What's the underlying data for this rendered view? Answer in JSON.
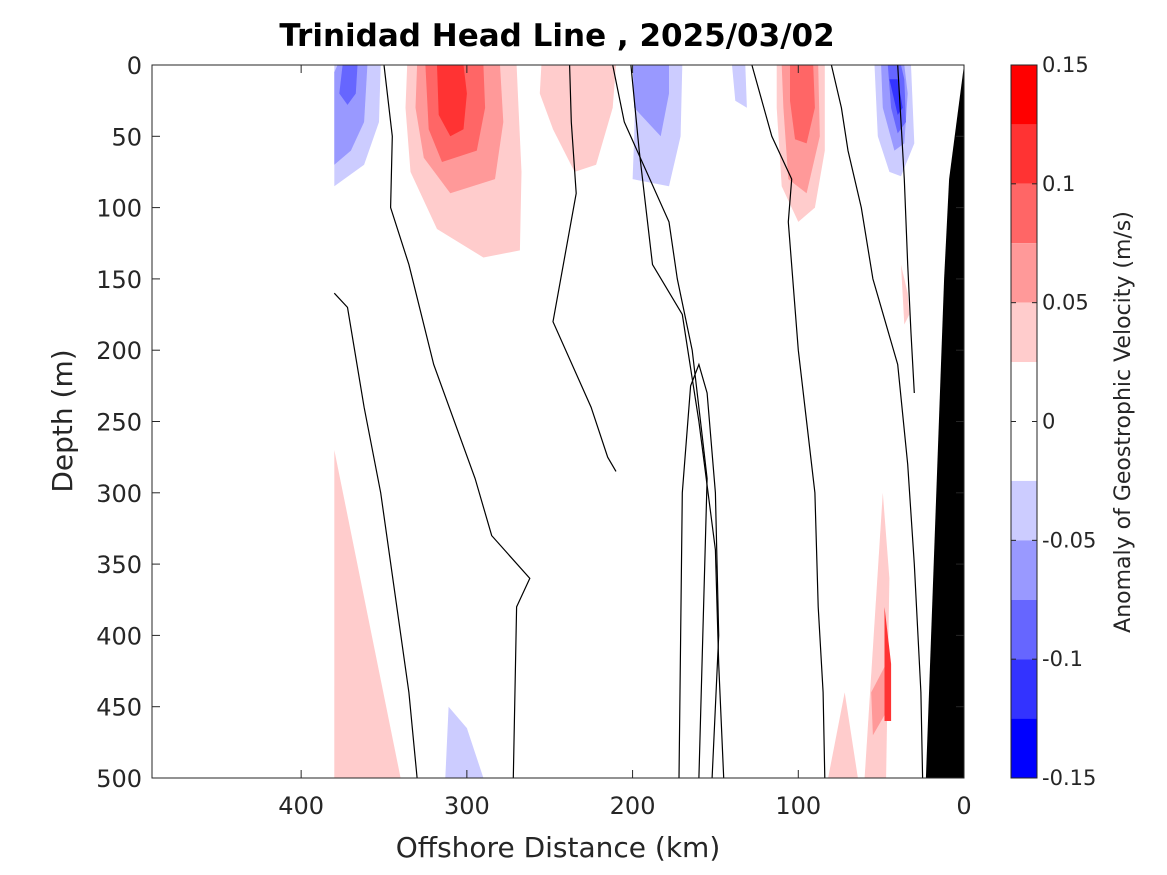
{
  "chart_data": {
    "type": "heatmap",
    "title": "Trinidad Head Line , 2025/03/02",
    "xlabel": "Offshore Distance (km)",
    "ylabel": "Depth (m)",
    "xlim": [
      490,
      0
    ],
    "ylim": [
      0,
      500
    ],
    "x_reversed": true,
    "y_reversed": true,
    "xticks": [
      400,
      300,
      200,
      100,
      0
    ],
    "yticks": [
      0,
      50,
      100,
      150,
      200,
      250,
      300,
      350,
      400,
      450,
      500
    ],
    "colorbar": {
      "label": "Anomaly of Geostrophic Velocity (m/s)",
      "range": [
        -0.15,
        0.15
      ],
      "ticks": [
        0.15,
        0.1,
        0.05,
        0,
        -0.05,
        -0.1,
        -0.15
      ],
      "tick_labels": [
        "0.15",
        "0.1",
        "0.05",
        "0",
        "-0.05",
        "-0.1",
        "-0.15"
      ],
      "levels": [
        {
          "from": 0.125,
          "to": 0.15,
          "color": "#ff0000"
        },
        {
          "from": 0.1,
          "to": 0.125,
          "color": "#ff3333"
        },
        {
          "from": 0.075,
          "to": 0.1,
          "color": "#ff6666"
        },
        {
          "from": 0.05,
          "to": 0.075,
          "color": "#ff9999"
        },
        {
          "from": 0.025,
          "to": 0.05,
          "color": "#ffcccc"
        },
        {
          "from": 0.0,
          "to": 0.025,
          "color": "#ffffff"
        },
        {
          "from": -0.025,
          "to": 0.0,
          "color": "#ffffff"
        },
        {
          "from": -0.05,
          "to": -0.025,
          "color": "#ccccff"
        },
        {
          "from": -0.075,
          "to": -0.05,
          "color": "#9999ff"
        },
        {
          "from": -0.1,
          "to": -0.075,
          "color": "#6666ff"
        },
        {
          "from": -0.125,
          "to": -0.1,
          "color": "#3333ff"
        },
        {
          "from": -0.15,
          "to": -0.125,
          "color": "#0000ff"
        }
      ]
    },
    "bathymetry_color": "#000000",
    "bathymetry": [
      [
        0,
        0
      ],
      [
        9,
        80
      ],
      [
        12,
        150
      ],
      [
        23,
        500
      ],
      [
        0,
        500
      ]
    ],
    "filled_regions": [
      {
        "level": -0.025,
        "points": [
          [
            380,
            0
          ],
          [
            338,
            0
          ],
          [
            339,
            30
          ],
          [
            345,
            70
          ],
          [
            358,
            95
          ],
          [
            380,
            115
          ]
        ]
      },
      {
        "level": -0.05,
        "points": [
          [
            380,
            0
          ],
          [
            352,
            0
          ],
          [
            353,
            40
          ],
          [
            362,
            70
          ],
          [
            380,
            85
          ]
        ]
      },
      {
        "level": -0.075,
        "points": [
          [
            378,
            0
          ],
          [
            360,
            0
          ],
          [
            362,
            40
          ],
          [
            370,
            60
          ],
          [
            380,
            70
          ],
          [
            380,
            5
          ]
        ]
      },
      {
        "level": -0.1,
        "points": [
          [
            375,
            0
          ],
          [
            366,
            0
          ],
          [
            367,
            20
          ],
          [
            372,
            28
          ],
          [
            377,
            20
          ]
        ]
      },
      {
        "level": 0.025,
        "points": [
          [
            336,
            0
          ],
          [
            270,
            0
          ],
          [
            269,
            25
          ],
          [
            267,
            75
          ],
          [
            268,
            130
          ],
          [
            290,
            135
          ],
          [
            318,
            115
          ],
          [
            334,
            75
          ],
          [
            337,
            30
          ]
        ]
      },
      {
        "level": 0.05,
        "points": [
          [
            330,
            0
          ],
          [
            280,
            0
          ],
          [
            278,
            40
          ],
          [
            283,
            80
          ],
          [
            310,
            90
          ],
          [
            326,
            65
          ],
          [
            331,
            30
          ]
        ]
      },
      {
        "level": 0.075,
        "points": [
          [
            325,
            0
          ],
          [
            290,
            0
          ],
          [
            289,
            30
          ],
          [
            294,
            60
          ],
          [
            315,
            68
          ],
          [
            323,
            45
          ]
        ]
      },
      {
        "level": 0.1,
        "points": [
          [
            318,
            0
          ],
          [
            302,
            0
          ],
          [
            300,
            20
          ],
          [
            302,
            45
          ],
          [
            310,
            50
          ],
          [
            317,
            35
          ]
        ]
      },
      {
        "level": 0.025,
        "points": [
          [
            255,
            0
          ],
          [
            210,
            0
          ],
          [
            212,
            30
          ],
          [
            222,
            70
          ],
          [
            235,
            75
          ],
          [
            248,
            45
          ],
          [
            256,
            20
          ]
        ]
      },
      {
        "level": -0.025,
        "points": [
          [
            232,
            0
          ],
          [
            196,
            0
          ],
          [
            194,
            40
          ],
          [
            190,
            90
          ],
          [
            176,
            110
          ],
          [
            165,
            80
          ],
          [
            162,
            30
          ],
          [
            164,
            0
          ]
        ]
      },
      {
        "level": -0.05,
        "points": [
          [
            225,
            0
          ],
          [
            198,
            0
          ],
          [
            199,
            50
          ],
          [
            200,
            80
          ],
          [
            178,
            85
          ],
          [
            171,
            50
          ],
          [
            170,
            0
          ]
        ]
      },
      {
        "level": -0.075,
        "points": [
          [
            218,
            0
          ],
          [
            200,
            0
          ],
          [
            199,
            30
          ],
          [
            183,
            50
          ],
          [
            178,
            20
          ],
          [
            178,
            0
          ]
        ]
      },
      {
        "level": -0.025,
        "points": [
          [
            145,
            0
          ],
          [
            128,
            0
          ],
          [
            126,
            40
          ],
          [
            120,
            70
          ],
          [
            135,
            70
          ],
          [
            142,
            40
          ]
        ]
      },
      {
        "level": -0.05,
        "points": [
          [
            140,
            0
          ],
          [
            132,
            0
          ],
          [
            131,
            30
          ],
          [
            138,
            25
          ]
        ]
      },
      {
        "level": 0.025,
        "points": [
          [
            113,
            0
          ],
          [
            84,
            0
          ],
          [
            84,
            60
          ],
          [
            90,
            100
          ],
          [
            100,
            110
          ],
          [
            110,
            85
          ],
          [
            113,
            30
          ]
        ]
      },
      {
        "level": 0.05,
        "points": [
          [
            110,
            0
          ],
          [
            88,
            0
          ],
          [
            87,
            50
          ],
          [
            95,
            90
          ],
          [
            106,
            80
          ],
          [
            109,
            30
          ]
        ]
      },
      {
        "level": 0.075,
        "points": [
          [
            105,
            0
          ],
          [
            91,
            0
          ],
          [
            90,
            30
          ],
          [
            95,
            55
          ],
          [
            102,
            52
          ],
          [
            105,
            25
          ]
        ]
      },
      {
        "level": -0.025,
        "points": [
          [
            70,
            0
          ],
          [
            58,
            0
          ],
          [
            55,
            50
          ],
          [
            48,
            85
          ],
          [
            35,
            90
          ],
          [
            26,
            70
          ],
          [
            25,
            25
          ],
          [
            28,
            0
          ]
        ]
      },
      {
        "level": -0.05,
        "points": [
          [
            64,
            0
          ],
          [
            54,
            0
          ],
          [
            52,
            50
          ],
          [
            45,
            75
          ],
          [
            38,
            78
          ],
          [
            30,
            55
          ],
          [
            32,
            0
          ]
        ]
      },
      {
        "level": -0.075,
        "points": [
          [
            60,
            0
          ],
          [
            50,
            0
          ],
          [
            49,
            30
          ],
          [
            42,
            60
          ],
          [
            36,
            55
          ],
          [
            34,
            20
          ],
          [
            36,
            0
          ]
        ]
      },
      {
        "level": -0.1,
        "points": [
          [
            57,
            0
          ],
          [
            46,
            0
          ],
          [
            44,
            30
          ],
          [
            40,
            48
          ],
          [
            35,
            40
          ],
          [
            36,
            10
          ],
          [
            38,
            0
          ]
        ]
      },
      {
        "level": -0.125,
        "points": [
          [
            45,
            10
          ],
          [
            40,
            10
          ],
          [
            37,
            30
          ],
          [
            40,
            35
          ]
        ]
      },
      {
        "level": -0.025,
        "points": [
          [
            82,
            100
          ],
          [
            75,
            110
          ],
          [
            75,
            150
          ],
          [
            78,
            190
          ],
          [
            84,
            175
          ],
          [
            84,
            130
          ]
        ]
      },
      {
        "level": 0.025,
        "points": [
          [
            38,
            140
          ],
          [
            34,
            160
          ],
          [
            33,
            175
          ],
          [
            36,
            182
          ]
        ]
      },
      {
        "level": 0.025,
        "points": [
          [
            380,
            270
          ],
          [
            340,
            500
          ],
          [
            380,
            500
          ]
        ]
      },
      {
        "level": -0.025,
        "points": [
          [
            322,
            500
          ],
          [
            323,
            330
          ],
          [
            315,
            290
          ],
          [
            299,
            320
          ],
          [
            286,
            375
          ],
          [
            273,
            405
          ],
          [
            267,
            500
          ]
        ]
      },
      {
        "level": -0.05,
        "points": [
          [
            313,
            500
          ],
          [
            311,
            450
          ],
          [
            300,
            465
          ],
          [
            290,
            500
          ]
        ]
      },
      {
        "level": -0.025,
        "points": [
          [
            114,
            500
          ],
          [
            107,
            340
          ],
          [
            98,
            400
          ],
          [
            98,
            500
          ]
        ]
      },
      {
        "level": 0.025,
        "points": [
          [
            82,
            500
          ],
          [
            72,
            440
          ],
          [
            64,
            500
          ]
        ]
      },
      {
        "level": 0.025,
        "points": [
          [
            60,
            500
          ],
          [
            49,
            300
          ],
          [
            45,
            360
          ],
          [
            47,
            500
          ]
        ]
      },
      {
        "level": 0.05,
        "points": [
          [
            56,
            440
          ],
          [
            47,
            420
          ],
          [
            45,
            450
          ],
          [
            55,
            470
          ]
        ]
      },
      {
        "level": 0.1,
        "points": [
          [
            48,
            380
          ],
          [
            44,
            420
          ],
          [
            44,
            460
          ],
          [
            48,
            460
          ]
        ]
      }
    ],
    "zero_contours": [
      [
        [
          380,
          160
        ],
        [
          372,
          170
        ],
        [
          362,
          240
        ],
        [
          352,
          300
        ],
        [
          335,
          440
        ],
        [
          330,
          500
        ]
      ],
      [
        [
          350,
          0
        ],
        [
          345,
          50
        ],
        [
          346,
          100
        ],
        [
          335,
          140
        ],
        [
          320,
          210
        ],
        [
          295,
          290
        ],
        [
          285,
          330
        ],
        [
          262,
          360
        ],
        [
          270,
          380
        ],
        [
          272,
          500
        ]
      ],
      [
        [
          238,
          0
        ],
        [
          237,
          40
        ],
        [
          234,
          90
        ],
        [
          248,
          180
        ],
        [
          225,
          240
        ],
        [
          215,
          275
        ],
        [
          210,
          285
        ]
      ],
      [
        [
          201,
          0
        ],
        [
          196,
          60
        ],
        [
          188,
          140
        ],
        [
          170,
          175
        ],
        [
          168,
          190
        ],
        [
          160,
          250
        ],
        [
          150,
          340
        ],
        [
          148,
          420
        ],
        [
          145,
          500
        ]
      ],
      [
        [
          128,
          0
        ],
        [
          116,
          50
        ],
        [
          104,
          80
        ],
        [
          106,
          110
        ],
        [
          100,
          200
        ],
        [
          95,
          250
        ],
        [
          90,
          300
        ],
        [
          88,
          380
        ],
        [
          85,
          440
        ],
        [
          84,
          500
        ]
      ],
      [
        [
          80,
          0
        ],
        [
          74,
          30
        ],
        [
          70,
          60
        ],
        [
          62,
          100
        ],
        [
          55,
          150
        ],
        [
          40,
          210
        ],
        [
          34,
          280
        ],
        [
          30,
          350
        ],
        [
          26,
          440
        ],
        [
          25,
          500
        ]
      ],
      [
        [
          40,
          0
        ],
        [
          38,
          40
        ],
        [
          36,
          80
        ],
        [
          34,
          140
        ],
        [
          32,
          188
        ],
        [
          30,
          230
        ]
      ],
      [
        [
          212,
          0
        ],
        [
          205,
          40
        ],
        [
          178,
          110
        ],
        [
          173,
          150
        ],
        [
          164,
          200
        ],
        [
          158,
          260
        ],
        [
          155,
          290
        ],
        [
          160,
          500
        ]
      ],
      [
        [
          152,
          500
        ],
        [
          148,
          400
        ],
        [
          150,
          300
        ],
        [
          155,
          230
        ],
        [
          160,
          210
        ],
        [
          165,
          225
        ],
        [
          170,
          300
        ],
        [
          172,
          500
        ]
      ]
    ]
  }
}
